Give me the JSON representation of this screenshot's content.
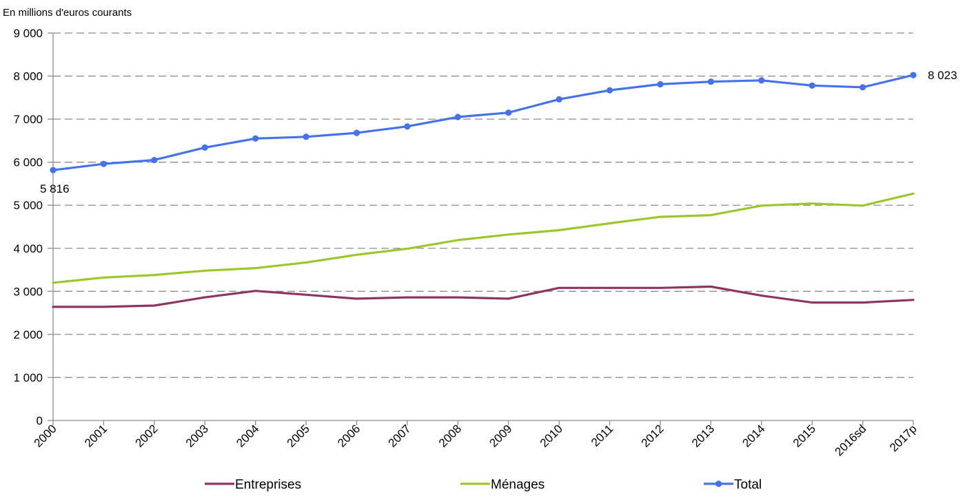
{
  "chart_data": {
    "type": "line",
    "unit_label": "En millions d'euros courants",
    "x": [
      "2000",
      "2001",
      "2002",
      "2003",
      "2004",
      "2005",
      "2006",
      "2007",
      "2008",
      "2009",
      "2010",
      "2011",
      "2012",
      "2013",
      "2014",
      "2015",
      "2016sd",
      "2017p"
    ],
    "y_ticks": [
      "0",
      "1 000",
      "2 000",
      "3 000",
      "4 000",
      "5 000",
      "6 000",
      "7 000",
      "8 000",
      "9 000"
    ],
    "ylim": [
      0,
      9000
    ],
    "grid": "horizontal dashed",
    "legend_position": "bottom",
    "series": [
      {
        "name": "Entreprises",
        "color": "#8e3460",
        "markers": false,
        "values": [
          2640,
          2640,
          2670,
          2860,
          3010,
          2920,
          2830,
          2860,
          2860,
          2830,
          3080,
          3080,
          3080,
          3110,
          2900,
          2740,
          2740,
          2800
        ]
      },
      {
        "name": "Ménages",
        "color": "#9dc62d",
        "markers": false,
        "values": [
          3200,
          3320,
          3380,
          3480,
          3540,
          3670,
          3850,
          3990,
          4190,
          4320,
          4420,
          4580,
          4730,
          4770,
          4990,
          5040,
          4990,
          5270
        ]
      },
      {
        "name": "Total",
        "color": "#4472ec",
        "markers": true,
        "values": [
          5816,
          5960,
          6050,
          6340,
          6550,
          6590,
          6680,
          6830,
          7050,
          7150,
          7460,
          7670,
          7810,
          7870,
          7900,
          7780,
          7740,
          8023
        ]
      }
    ],
    "annotations": [
      {
        "series": "Total",
        "index": 0,
        "text": "5 816"
      },
      {
        "series": "Total",
        "index": 17,
        "text": "8 023"
      }
    ]
  }
}
